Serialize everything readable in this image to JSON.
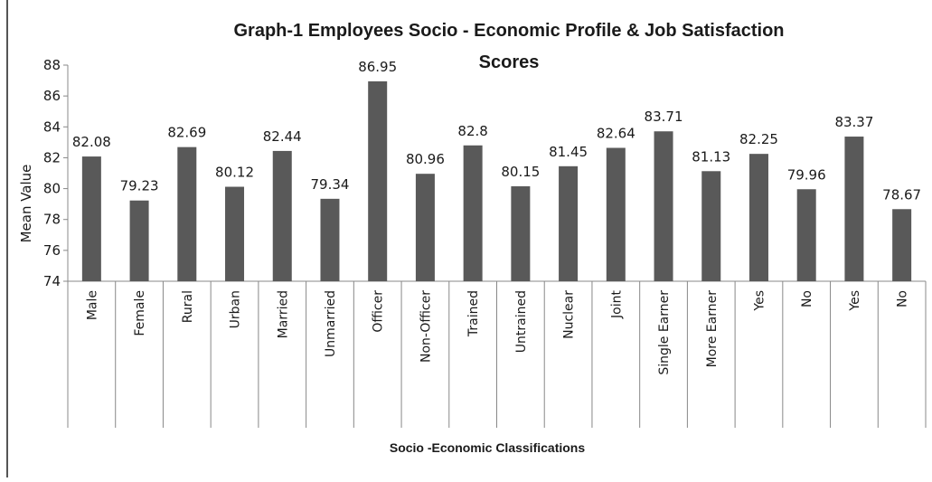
{
  "chart_data": {
    "type": "bar",
    "title": "Graph-1  Employees Socio - Economic Profile & Job Satisfaction Scores",
    "title_lines": [
      "Graph-1  Employees Socio - Economic Profile & Job Satisfaction",
      "Scores"
    ],
    "xlabel": "Socio -Economic Classifications",
    "ylabel": "Mean Value",
    "ylim": [
      74,
      88
    ],
    "yticks": [
      74,
      76,
      78,
      80,
      82,
      84,
      86,
      88
    ],
    "grid": false,
    "legend": "none",
    "bar_color": "#595959",
    "categories": [
      "Male",
      "Female",
      "Rural",
      "Urban",
      "Married",
      "Unmarried",
      "Officer",
      "Non-Officer",
      "Trained",
      "Untrained",
      "Nuclear",
      "Joint",
      "Single Earner",
      "More Earner",
      "Yes",
      "No",
      "Yes",
      "No"
    ],
    "values": [
      82.08,
      79.23,
      82.69,
      80.12,
      82.44,
      79.34,
      86.95,
      80.96,
      82.8,
      80.15,
      81.45,
      82.64,
      83.71,
      81.13,
      82.25,
      79.96,
      83.37,
      78.67
    ],
    "data_labels": [
      "82.08",
      "79.23",
      "82.69",
      "80.12",
      "82.44",
      "79.34",
      "86.95",
      "80.96",
      "82.8",
      "80.15",
      "81.45",
      "82.64",
      "83.71",
      "81.13",
      "82.25",
      "79.96",
      "83.37",
      "78.67"
    ]
  }
}
